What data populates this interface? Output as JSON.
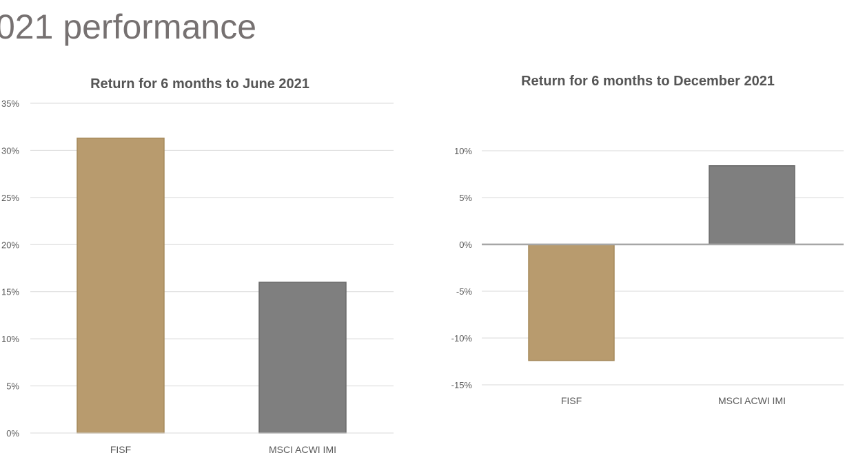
{
  "slide": {
    "title": "021 performance"
  },
  "chart_data": [
    {
      "type": "bar",
      "title": "Return for 6 months to June 2021",
      "categories": [
        "FISF",
        "MSCI ACWI IMI"
      ],
      "values": [
        31.3,
        16.0
      ],
      "colors": [
        "#b89b6e",
        "#7f7f7f"
      ],
      "ylim": [
        0,
        35
      ],
      "yticks": [
        {
          "v": 35,
          "label": "35%"
        },
        {
          "v": 30,
          "label": "30%"
        },
        {
          "v": 25,
          "label": "25%"
        },
        {
          "v": 20,
          "label": "20%"
        },
        {
          "v": 15,
          "label": "15%"
        },
        {
          "v": 10,
          "label": "10%"
        },
        {
          "v": 5,
          "label": "5%"
        },
        {
          "v": 0,
          "label": "0%"
        }
      ],
      "grid": true
    },
    {
      "type": "bar",
      "title": "Return for 6 months to December 2021",
      "categories": [
        "FISF",
        "MSCI ACWI IMI"
      ],
      "values": [
        -12.4,
        8.4
      ],
      "colors": [
        "#b89b6e",
        "#7f7f7f"
      ],
      "ylim": [
        -15,
        10
      ],
      "yticks": [
        {
          "v": 10,
          "label": "10%"
        },
        {
          "v": 5,
          "label": "5%"
        },
        {
          "v": 0,
          "label": "0%"
        },
        {
          "v": -5,
          "label": "-5%"
        },
        {
          "v": -10,
          "label": "-10%"
        },
        {
          "v": -15,
          "label": "-15%"
        }
      ],
      "grid": true
    }
  ]
}
